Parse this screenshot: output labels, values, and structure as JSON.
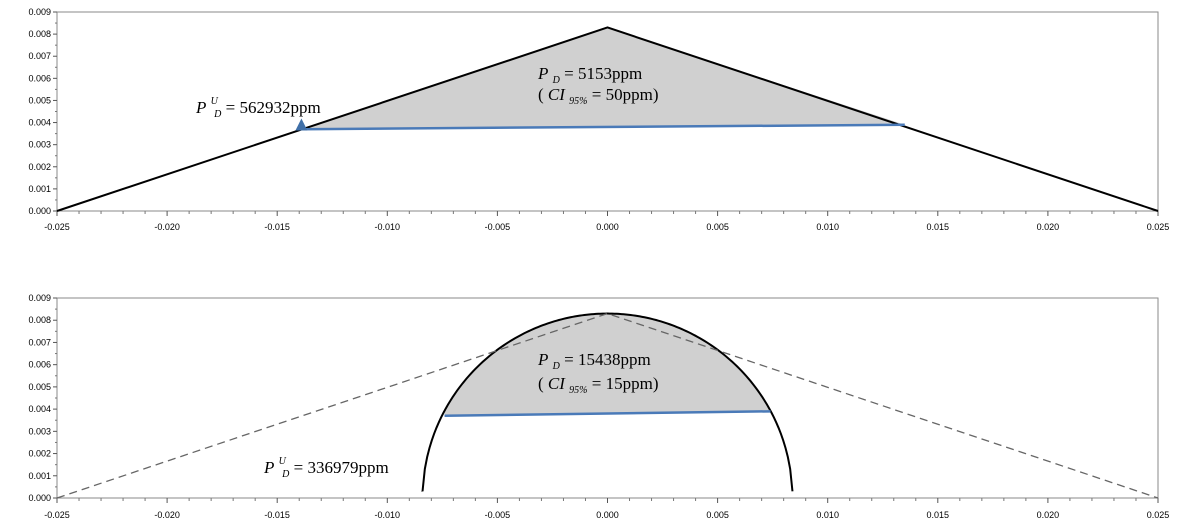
{
  "chart_data": [
    {
      "type": "line",
      "xlim": [
        -0.025,
        0.025
      ],
      "ylim": [
        0,
        0.009
      ],
      "x_ticks": [
        "-0.025",
        "-0.020",
        "-0.015",
        "-0.010",
        "-0.005",
        "0.000",
        "0.005",
        "0.010",
        "0.015",
        "0.020",
        "0.025"
      ],
      "y_ticks": [
        "0.000",
        "0.001",
        "0.002",
        "0.003",
        "0.004",
        "0.005",
        "0.006",
        "0.007",
        "0.008",
        "0.009"
      ],
      "curve": {
        "shape": "triangle",
        "x": [
          -0.025,
          0.0,
          0.025
        ],
        "y": [
          0.0,
          0.0083,
          0.0
        ]
      },
      "shaded_region": {
        "x_left": -0.0139,
        "x_right": 0.0135,
        "y_left": 0.0037,
        "y_right": 0.0039
      },
      "baseline": {
        "x": [
          -0.0139,
          0.0135
        ],
        "y": [
          0.0037,
          0.0039
        ],
        "color": "#4a7ab8"
      },
      "marker": {
        "x": -0.0139,
        "y": 0.004,
        "shape": "triangle",
        "color": "#3f6fa8"
      },
      "shade_color": "#d0d0d0",
      "annotations": {
        "pdu_lhs": "P",
        "pdu_sup": "U",
        "pdu_sub": "D",
        "pdu_value": " = 562932ppm",
        "pd_lhs": "P",
        "pd_sub": "D",
        "pd_value": " = 5153ppm",
        "ci_open": "(",
        "ci_lhs": "CI",
        "ci_sub": "95%",
        "ci_value": " = 50ppm)"
      }
    },
    {
      "type": "line",
      "xlim": [
        -0.025,
        0.025
      ],
      "ylim": [
        0,
        0.009
      ],
      "x_ticks": [
        "-0.025",
        "-0.020",
        "-0.015",
        "-0.010",
        "-0.005",
        "0.000",
        "0.005",
        "0.010",
        "0.015",
        "0.020",
        "0.025"
      ],
      "y_ticks": [
        "0.000",
        "0.001",
        "0.002",
        "0.003",
        "0.004",
        "0.005",
        "0.006",
        "0.007",
        "0.008",
        "0.009"
      ],
      "curve": {
        "shape": "semi-ellipse",
        "center_x": 0.0,
        "half_width": 0.0084,
        "peak_y": 0.0083,
        "x_start": -0.0084,
        "x_end": 0.0084,
        "y_end": 0.0003
      },
      "dashed_reference": {
        "shape": "triangle",
        "x": [
          -0.025,
          0.0,
          0.025
        ],
        "y": [
          0.0,
          0.0083,
          0.0
        ]
      },
      "shaded_region": {
        "x_left": -0.0074,
        "x_right": 0.0074,
        "y_left": 0.0037,
        "y_right": 0.0039
      },
      "baseline": {
        "x": [
          -0.0074,
          0.0074
        ],
        "y": [
          0.0037,
          0.0039
        ],
        "color": "#4a7ab8"
      },
      "shade_color": "#d0d0d0",
      "annotations": {
        "pdu_lhs": "P",
        "pdu_sup": "U",
        "pdu_sub": "D",
        "pdu_value": " = 336979ppm",
        "pd_lhs": "P",
        "pd_sub": "D",
        "pd_value": " = 15438ppm",
        "ci_open": "(",
        "ci_lhs": "CI",
        "ci_sub": "95%",
        "ci_value": " = 15ppm)"
      }
    }
  ]
}
